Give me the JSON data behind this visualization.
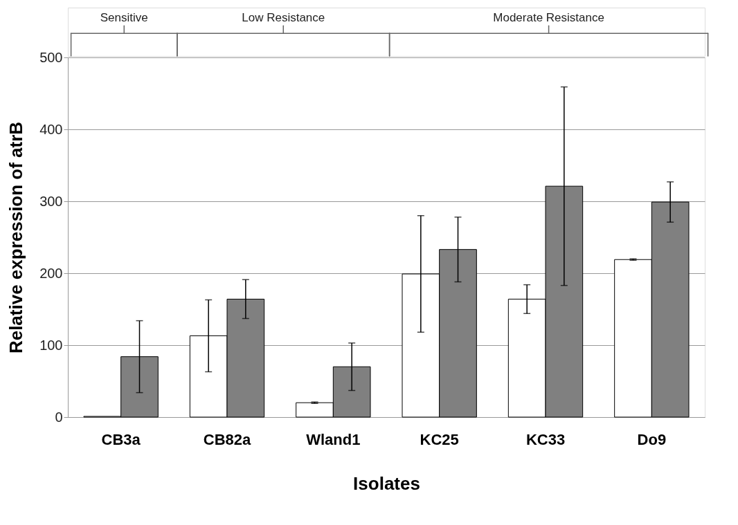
{
  "chart_data": {
    "type": "bar",
    "categories": [
      "CB3a",
      "CB82a",
      "Wland1",
      "KC25",
      "KC33",
      "Do9"
    ],
    "series": [
      {
        "color": "#ffffff",
        "values": [
          1,
          113,
          20,
          199,
          164,
          219
        ],
        "errors": [
          null,
          50,
          1,
          81,
          20,
          1
        ]
      },
      {
        "color": "#808080",
        "values": [
          84,
          164,
          70,
          233,
          321,
          299
        ],
        "errors": [
          50,
          27,
          33,
          45,
          138,
          28
        ]
      }
    ],
    "xlabel": "Isolates",
    "ylabel": "Relative expression of atrB",
    "ylim": [
      0,
      500
    ],
    "yticks": [
      0,
      100,
      200,
      300,
      400,
      500
    ],
    "grid": "y",
    "legend": false,
    "annotations": [
      "Sensitive",
      "Low Resistance",
      "Moderate Resistance"
    ]
  }
}
